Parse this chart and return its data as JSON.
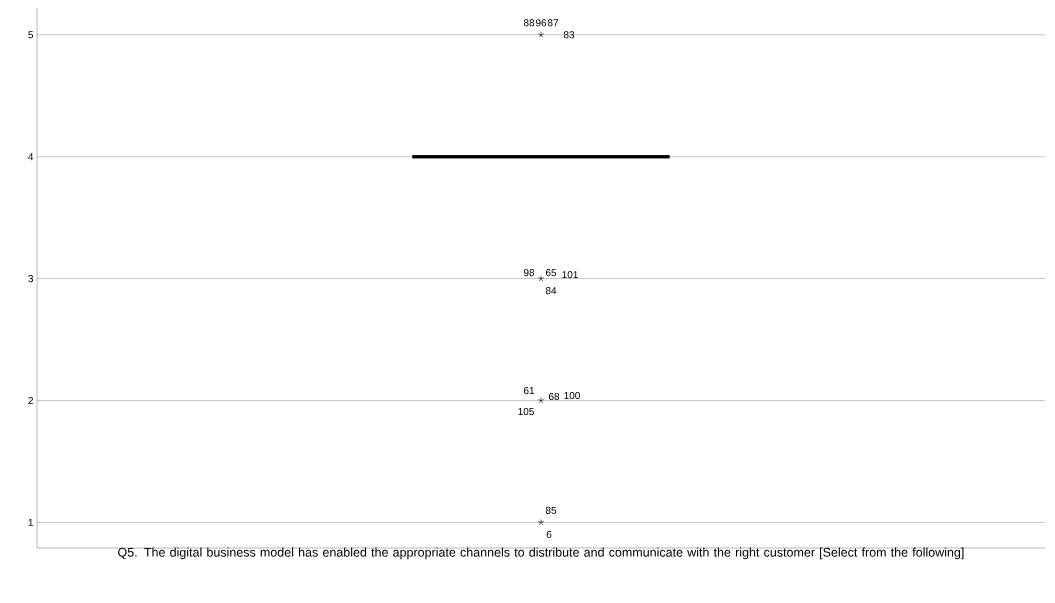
{
  "chart_data": {
    "type": "box",
    "xlabel": "Q5. The digital business model has enabled the appropriate channels to distribute and communicate with the right customer [Select from the following]",
    "categories": [
      null
    ],
    "boxes": [
      {
        "low": 4,
        "q1": 4,
        "median": 4,
        "q3": 4,
        "high": 4,
        "outliers": [
          5,
          3,
          2,
          1
        ]
      }
    ],
    "ylim": [
      0.79,
      5.22
    ],
    "yticks": [
      1,
      2,
      3,
      4,
      5
    ],
    "grid": "y",
    "marker": "star",
    "annotations": [
      "88",
      "96",
      "87",
      "83",
      "98",
      "65",
      "101",
      "84",
      "61",
      "68",
      "100",
      "105",
      "85",
      "6"
    ]
  }
}
